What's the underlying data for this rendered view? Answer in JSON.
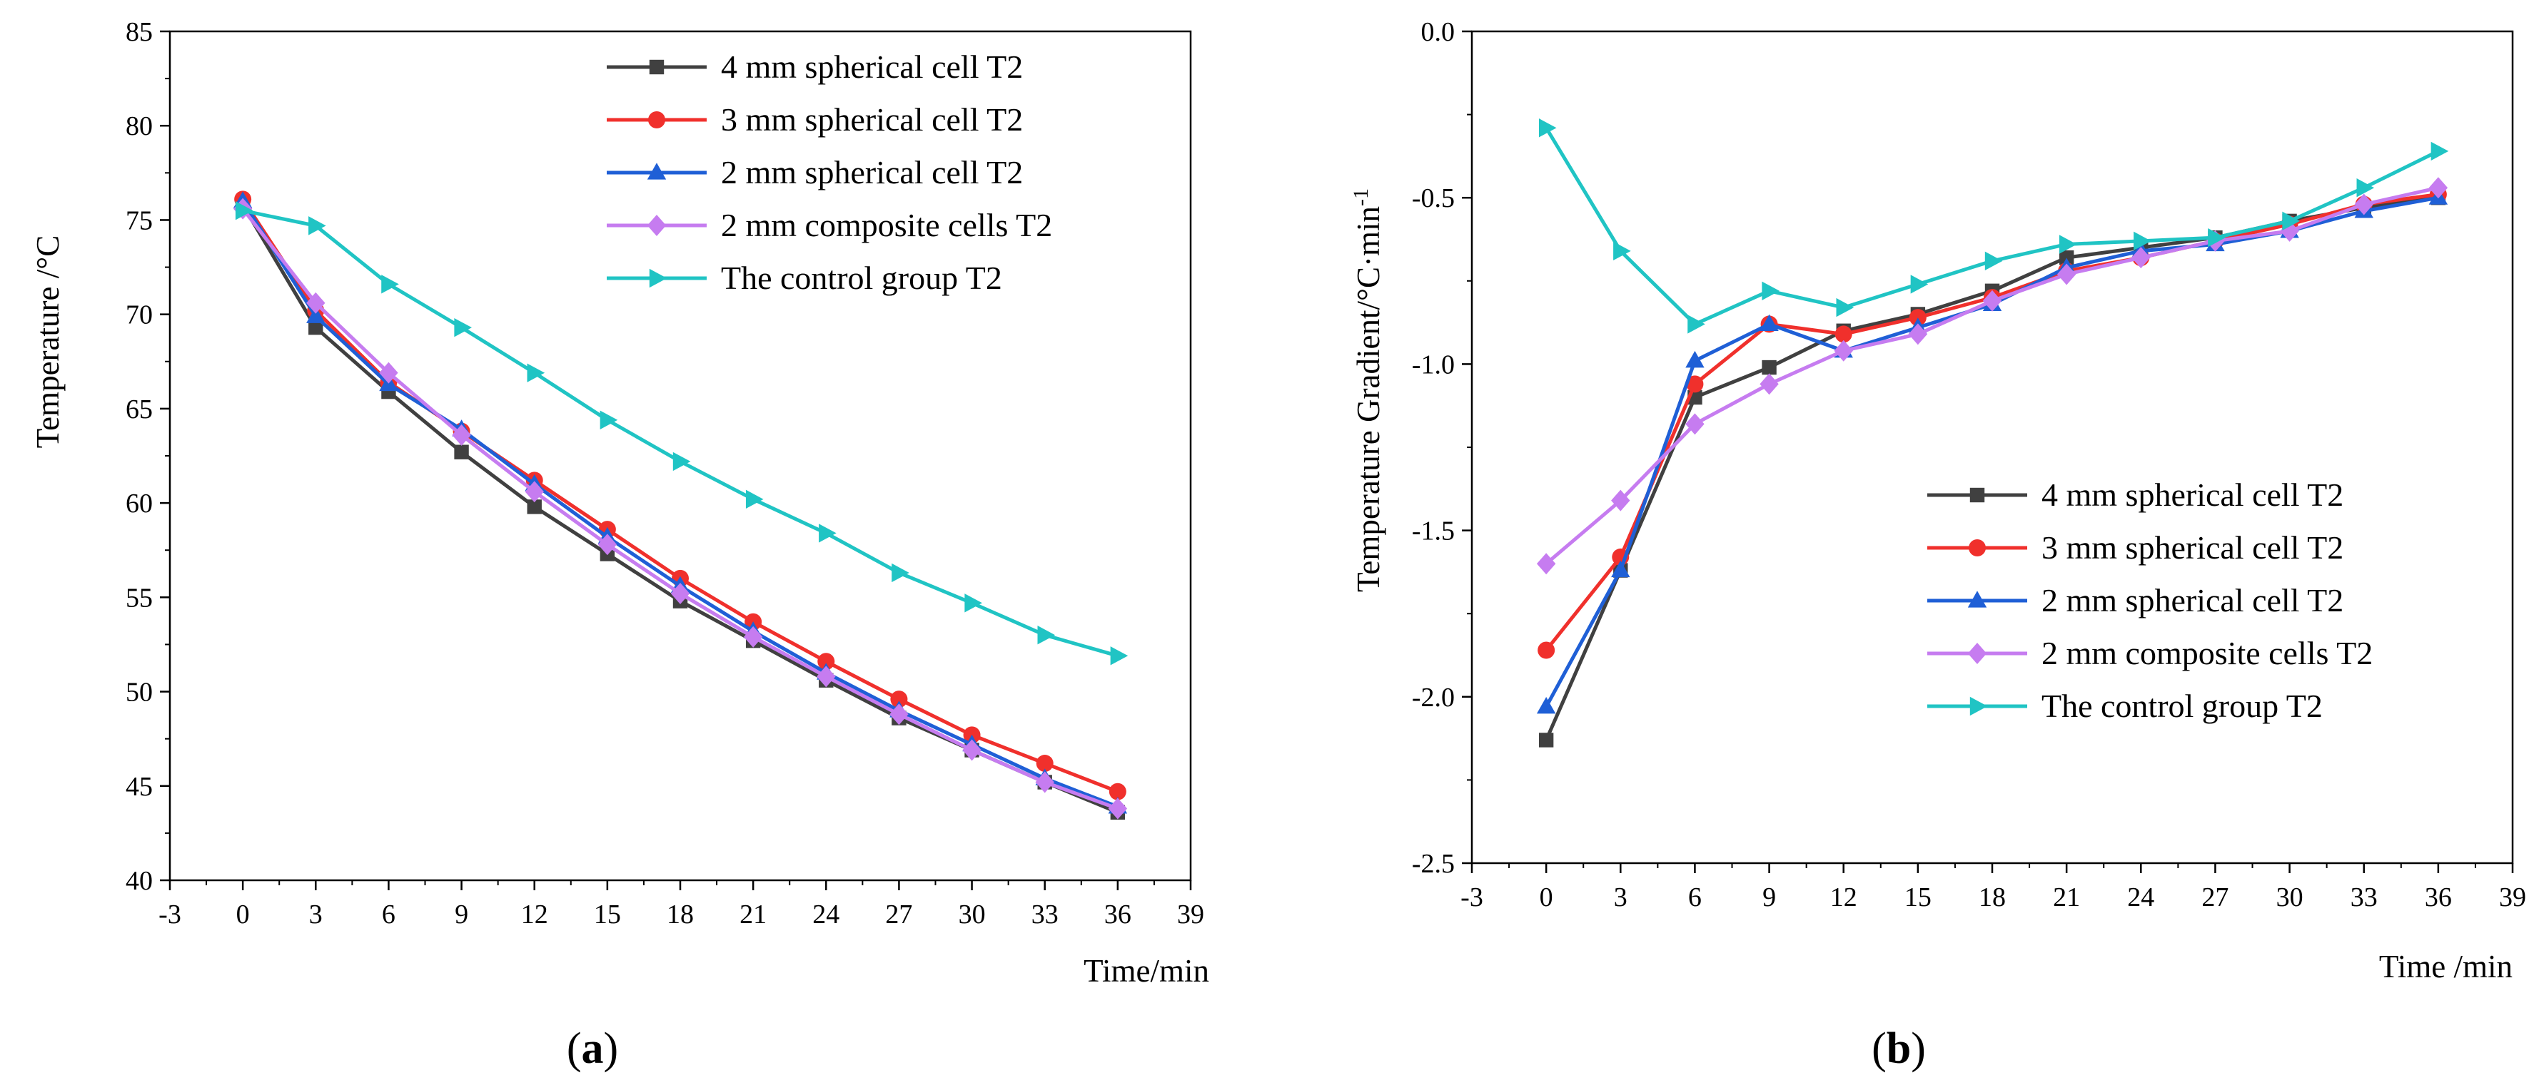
{
  "chart_data": [
    {
      "type": "line",
      "panel_label_open": "(",
      "panel_label": "a",
      "panel_label_close": ")",
      "title": "",
      "xlabel": "Time/min",
      "ylabel": "Temperature /°C",
      "xlim": [
        -3,
        39
      ],
      "ylim": [
        40,
        85
      ],
      "xticks": [
        -3,
        0,
        3,
        6,
        9,
        12,
        15,
        18,
        21,
        24,
        27,
        30,
        33,
        36,
        39
      ],
      "yticks": [
        40,
        45,
        50,
        55,
        60,
        65,
        70,
        75,
        80,
        85
      ],
      "legend_position": "top-right",
      "x": [
        0,
        3,
        6,
        9,
        12,
        15,
        18,
        21,
        24,
        27,
        30,
        33,
        36
      ],
      "series": [
        {
          "name": "4 mm spherical cell T2",
          "color": "#404040",
          "marker": "square",
          "values": [
            75.8,
            69.3,
            65.9,
            62.7,
            59.8,
            57.3,
            54.8,
            52.7,
            50.6,
            48.6,
            46.9,
            45.2,
            43.6
          ]
        },
        {
          "name": "3 mm spherical cell T2",
          "color": "#f0302c",
          "marker": "circle",
          "values": [
            76.1,
            70.2,
            66.4,
            63.8,
            61.2,
            58.6,
            56.0,
            53.7,
            51.6,
            49.6,
            47.7,
            46.2,
            44.7
          ]
        },
        {
          "name": "2 mm spherical cell T2",
          "color": "#1f5fd6",
          "marker": "triangle-up",
          "values": [
            76.0,
            69.9,
            66.3,
            63.9,
            61.0,
            58.2,
            55.6,
            53.2,
            51.0,
            49.0,
            47.2,
            45.4,
            43.9
          ]
        },
        {
          "name": "2 mm composite cells T2",
          "color": "#c67cf0",
          "marker": "diamond",
          "values": [
            75.6,
            70.6,
            66.9,
            63.6,
            60.6,
            57.8,
            55.2,
            52.9,
            50.8,
            48.8,
            46.9,
            45.2,
            43.8
          ]
        },
        {
          "name": "The control group T2",
          "color": "#20c4c4",
          "marker": "triangle-right",
          "values": [
            75.5,
            74.7,
            71.6,
            69.3,
            66.9,
            64.4,
            62.2,
            60.2,
            58.4,
            56.3,
            54.7,
            53.0,
            51.9
          ]
        }
      ]
    },
    {
      "type": "line",
      "panel_label_open": "(",
      "panel_label": "b",
      "panel_label_close": ")",
      "title": "",
      "xlabel": "Time /min",
      "ylabel_main": "Temperature Gradient/°C·min",
      "ylabel_sup": "-1",
      "xlim": [
        -3,
        39
      ],
      "ylim": [
        -2.5,
        0.0
      ],
      "xticks": [
        -3,
        0,
        3,
        6,
        9,
        12,
        15,
        18,
        21,
        24,
        27,
        30,
        33,
        36,
        39
      ],
      "yticks": [
        -2.5,
        -2.0,
        -1.5,
        -1.0,
        -0.5,
        0.0
      ],
      "ytick_labels": [
        "-2.5",
        "-2.0",
        "-1.5",
        "-1.0",
        "-0.5",
        "0.0"
      ],
      "legend_position": "bottom-right",
      "x": [
        0,
        3,
        6,
        9,
        12,
        15,
        18,
        21,
        24,
        27,
        30,
        33,
        36
      ],
      "series": [
        {
          "name": "4 mm spherical cell T2",
          "color": "#404040",
          "marker": "square",
          "values": [
            -2.13,
            -1.62,
            -1.1,
            -1.01,
            -0.9,
            -0.85,
            -0.78,
            -0.68,
            -0.65,
            -0.62,
            -0.57,
            -0.53,
            -0.5
          ]
        },
        {
          "name": "3 mm spherical cell T2",
          "color": "#f0302c",
          "marker": "circle",
          "values": [
            -1.86,
            -1.58,
            -1.06,
            -0.88,
            -0.91,
            -0.86,
            -0.8,
            -0.72,
            -0.68,
            -0.63,
            -0.58,
            -0.52,
            -0.49
          ]
        },
        {
          "name": "2 mm spherical cell T2",
          "color": "#1f5fd6",
          "marker": "triangle-up",
          "values": [
            -2.03,
            -1.62,
            -0.99,
            -0.88,
            -0.96,
            -0.89,
            -0.82,
            -0.71,
            -0.66,
            -0.64,
            -0.6,
            -0.54,
            -0.5
          ]
        },
        {
          "name": "2 mm composite cells T2",
          "color": "#c67cf0",
          "marker": "diamond",
          "values": [
            -1.6,
            -1.41,
            -1.18,
            -1.06,
            -0.96,
            -0.91,
            -0.81,
            -0.73,
            -0.68,
            -0.63,
            -0.6,
            -0.52,
            -0.47
          ]
        },
        {
          "name": "The control group T2",
          "color": "#20c4c4",
          "marker": "triangle-right",
          "values": [
            -0.29,
            -0.66,
            -0.88,
            -0.78,
            -0.83,
            -0.76,
            -0.69,
            -0.64,
            -0.63,
            -0.62,
            -0.57,
            -0.47,
            -0.36
          ]
        }
      ]
    }
  ]
}
